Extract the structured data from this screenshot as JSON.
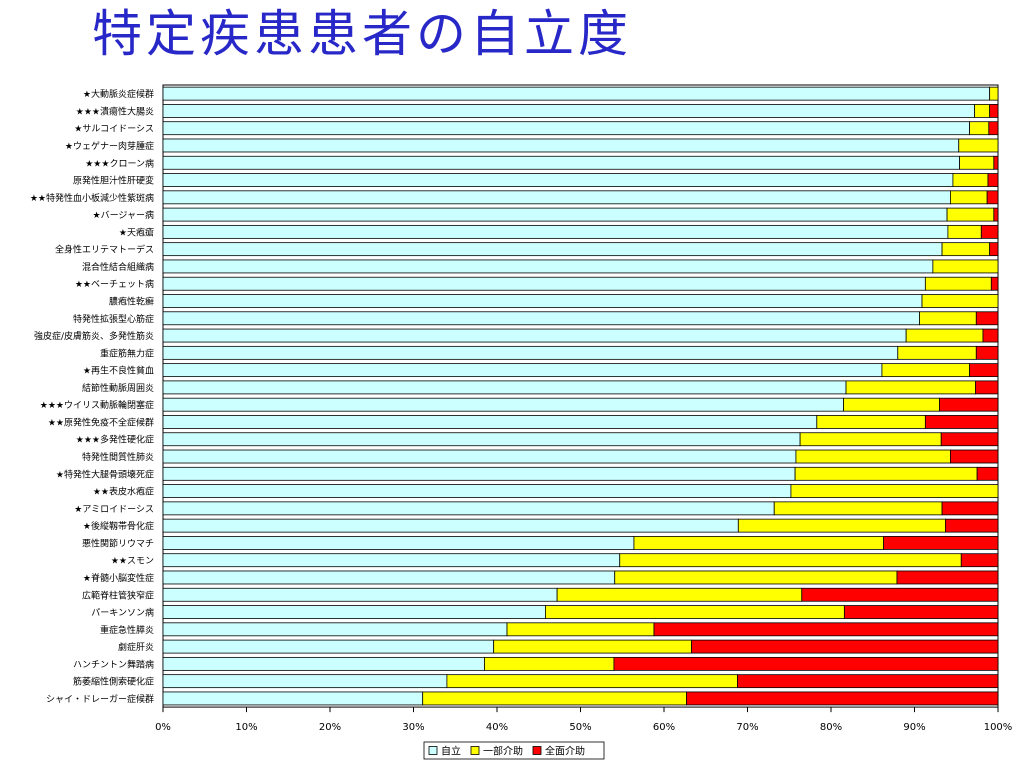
{
  "title": "特定疾患患者の自立度",
  "chart_data": {
    "type": "bar",
    "orientation": "horizontal",
    "stacked": "percent",
    "title": "特定疾患患者の自立度",
    "xlim": [
      0,
      100
    ],
    "x_ticks": [
      "0%",
      "10%",
      "20%",
      "30%",
      "40%",
      "50%",
      "60%",
      "70%",
      "80%",
      "90%",
      "100%"
    ],
    "grid": false,
    "legend_position": "bottom",
    "categories": [
      "★大動脈炎症候群",
      "★★★潰瘍性大腸炎",
      "★サルコイドーシス",
      "★ウェゲナー肉芽腫症",
      "★★★クローン病",
      "原発性胆汁性肝硬変",
      "★★特発性血小板減少性紫斑病",
      "★バージャー病",
      "★天疱瘡",
      "全身性エリテマトーデス",
      "混合性結合組織病",
      "★★ベーチェット病",
      "膿疱性乾癬",
      "特発性拡張型心筋症",
      "強皮症/皮膚筋炎、多発性筋炎",
      "重症筋無力症",
      "★再生不良性貧血",
      "結節性動脈周囲炎",
      "★★★ウイリス動脈輪閉塞症",
      "★★原発性免疫不全症候群",
      "★★★多発性硬化症",
      "特発性間質性肺炎",
      "★特発性大腿骨頭壊死症",
      "★★表皮水疱症",
      "★アミロイドーシス",
      "★後縦靱帯骨化症",
      "悪性関節リウマチ",
      "★★スモン",
      "★脊髄小脳変性症",
      "広範脊柱管狭窄症",
      "パーキンソン病",
      "重症急性膵炎",
      "劇症肝炎",
      "ハンチントン舞踏病",
      "筋萎縮性側索硬化症",
      "シャイ・ドレーガー症候群"
    ],
    "series": [
      {
        "name": "自立",
        "color": "#ccffff",
        "values": [
          99,
          97.2,
          96.6,
          95.3,
          95.4,
          94.6,
          94.3,
          93.9,
          94,
          93.3,
          92.2,
          91.3,
          90.9,
          90.6,
          89,
          88,
          86.1,
          81.8,
          81.5,
          78.3,
          76.3,
          75.8,
          75.7,
          75.2,
          73.2,
          68.9,
          56.4,
          54.7,
          54.1,
          47.2,
          45.8,
          41.2,
          39.6,
          38.5,
          34,
          31.1
        ]
      },
      {
        "name": "一部介助",
        "color": "#ffff00",
        "values": [
          1,
          1.8,
          2.3,
          4.7,
          4.1,
          4.2,
          4.4,
          5.6,
          4,
          5.7,
          7.8,
          7.9,
          9.1,
          6.8,
          9.2,
          9.4,
          10.5,
          15.5,
          11.5,
          13,
          16.9,
          18.5,
          21.8,
          24.8,
          20.1,
          24.8,
          29.9,
          40.9,
          33.8,
          29.3,
          35.8,
          17.6,
          23.7,
          15.5,
          34.8,
          31.6
        ]
      },
      {
        "name": "全面介助",
        "color": "#ff0000",
        "values": [
          0,
          1,
          1.1,
          0,
          0.5,
          1.2,
          1.3,
          0.5,
          2,
          1,
          0,
          0.8,
          0,
          2.6,
          1.8,
          2.6,
          3.4,
          2.7,
          7,
          8.7,
          6.8,
          5.7,
          2.5,
          0,
          6.7,
          6.3,
          13.7,
          4.4,
          12.1,
          23.5,
          18.4,
          41.2,
          36.7,
          46,
          31.2,
          37.3
        ]
      }
    ]
  }
}
